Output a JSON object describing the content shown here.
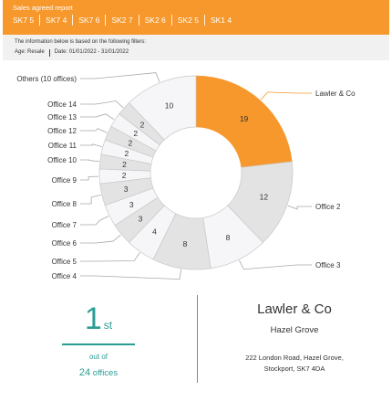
{
  "header": {
    "report_title": "Sales agreed report",
    "tabs": [
      "SK7 5",
      "SK7 4",
      "SK7 6",
      "SK2 7",
      "SK2 6",
      "SK2 5",
      "SK1 4"
    ]
  },
  "filters": {
    "intro": "The information below is based on the following filters:",
    "age": "Age: Resale",
    "date": "Date: 01/01/2022 - 31/01/2022"
  },
  "chart_data": {
    "type": "pie",
    "variant": "donut",
    "categories": [
      "Lawler & Co",
      "Office 2",
      "Office 3",
      "Office 4",
      "Office 5",
      "Office 6",
      "Office 7",
      "Office 8",
      "Office 9",
      "Office 10",
      "Office 11",
      "Office 12",
      "Office 13",
      "Office 14",
      "Others (10 offices)"
    ],
    "values": [
      19,
      12,
      8,
      8,
      4,
      3,
      3,
      3,
      2,
      2,
      2,
      2,
      2,
      2,
      10
    ],
    "highlighted": "Lawler & Co",
    "colors": {
      "highlight": "#f7982d",
      "gray": "#e3e3e3",
      "light": "#f6f6f8",
      "stroke": "#c8c8c8",
      "highlight_label": "#f7982d"
    }
  },
  "rank": {
    "position": "1",
    "suffix": "st",
    "out_of": "out of",
    "count": "24",
    "count_label": "offices"
  },
  "office": {
    "name": "Lawler & Co",
    "area": "Hazel Grove",
    "address_line1": "222 London Road, Hazel Grove,",
    "address_line2": "Stockport, SK7 4DA"
  }
}
